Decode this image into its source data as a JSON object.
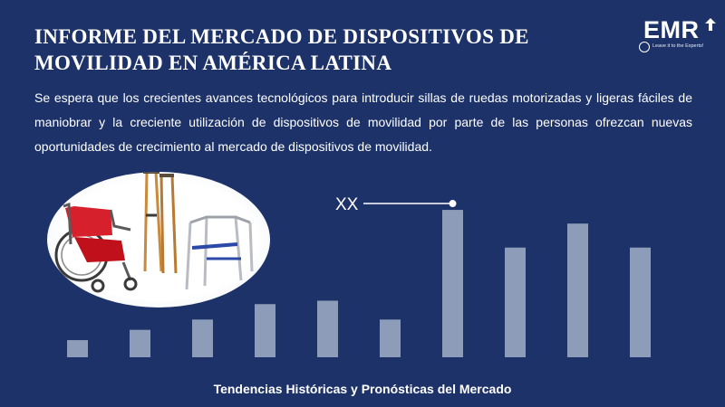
{
  "header": {
    "title_line1": "INFORME DEL MERCADO DE DISPOSITIVOS DE",
    "title_line2": "MOVILIDAD EN AMÉRICA LATINA"
  },
  "logo": {
    "text": "EMR",
    "tagline": "Leave it to the Experts!",
    "icon": "upward-arrow-icon"
  },
  "description": "Se espera que los crecientes avances tecnológicos para introducir sillas de ruedas motorizadas y ligeras fáciles de maniobrar y la creciente utilización de dispositivos de movilidad por parte de las personas ofrezcan nuevas oportunidades de crecimiento al mercado de dispositivos de movilidad.",
  "image": {
    "subject": "wheelchair-crutches-walker-image"
  },
  "chart_data": {
    "type": "bar",
    "categories": [
      "",
      "",
      "",
      "",
      "",
      "",
      "",
      "",
      "",
      ""
    ],
    "values": [
      1.0,
      1.6,
      2.2,
      3.1,
      3.3,
      2.2,
      8.6,
      6.4,
      7.8,
      6.4
    ],
    "ylim": [
      0,
      9.5
    ],
    "grid": false,
    "annotation": {
      "text": "XX",
      "bar_index": 6
    },
    "colors": {
      "bar": "#8d9cb8",
      "background": "#1d3268",
      "annotation": "#ffffff"
    }
  },
  "footer": {
    "text": "Tendencias Históricas y Pronósticas del Mercado"
  }
}
